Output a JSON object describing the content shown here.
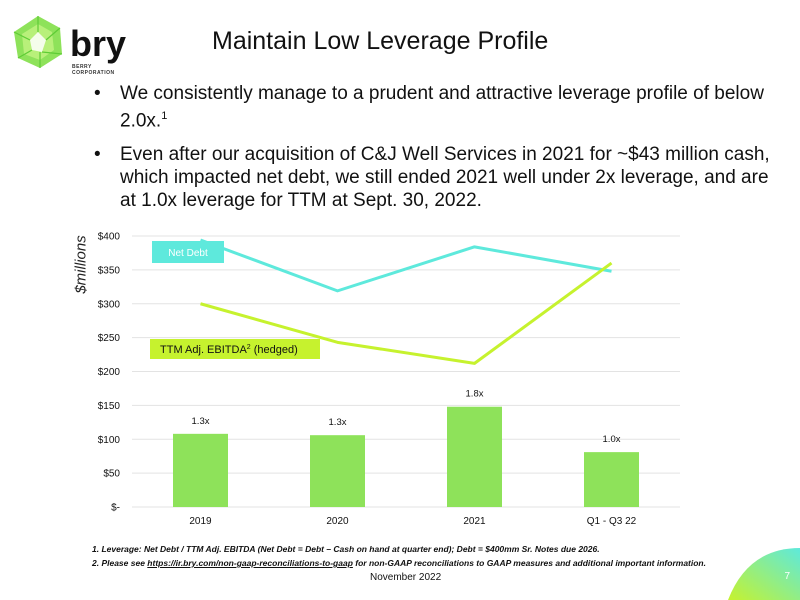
{
  "logo": {
    "word": "bry",
    "sub_line1": "BERRY",
    "sub_line2": "CORPORATION"
  },
  "title": "Maintain Low Leverage Profile",
  "bullets": [
    {
      "text": "We consistently manage to a prudent and attractive leverage profile of below 2.0x.",
      "sup": "1"
    },
    {
      "text": "Even after our acquisition of C&J Well Services in 2021 for ~$43 million cash, which impacted net debt, we still ended 2021 well under 2x leverage, and are at 1.0x leverage for TTM at Sept. 30, 2022.",
      "sup": ""
    }
  ],
  "ylabel": "$millions",
  "chart_data": {
    "type": "bar",
    "categories": [
      "2019",
      "2020",
      "2021",
      "Q1 - Q3 22"
    ],
    "ylim": [
      0,
      400
    ],
    "yticks": [
      0,
      50,
      100,
      150,
      200,
      250,
      300,
      350,
      400
    ],
    "ytick_labels": [
      "$-",
      "$50",
      "$100",
      "$150",
      "$200",
      "$250",
      "$300",
      "$350",
      "$400"
    ],
    "grid": true,
    "bars": {
      "values": [
        108,
        106,
        148,
        81
      ],
      "labels": [
        "1.3x",
        "1.3x",
        "1.8x",
        "1.0x"
      ],
      "color": "#8ee25a"
    },
    "lines": [
      {
        "name": "Net Debt",
        "values": [
          394,
          319,
          384,
          348
        ],
        "color": "#5ee9dc"
      },
      {
        "name": "TTM Adj. EBITDA",
        "name_sup": "2",
        "name_suffix": " (hedged)",
        "values": [
          300,
          243,
          212,
          360
        ],
        "color": "#c6f22e"
      }
    ]
  },
  "footnotes": {
    "line1": "1. Leverage:  Net Debt / TTM Adj. EBITDA (Net Debt = Debt – Cash on hand at quarter end); Debt = $400mm Sr. Notes due 2026.",
    "line2_prefix": "2. Please see ",
    "line2_link": "https://ir.bry.com/non-gaap-reconciliations-to-gaap",
    "line2_suffix": " for non-GAAP reconciliations to GAAP measures and additional important information."
  },
  "footer": {
    "date": "November 2022",
    "page": "7"
  },
  "colors": {
    "accent_green": "#8ee25a",
    "net_debt": "#5ee9dc",
    "ebitda": "#c6f22e"
  }
}
